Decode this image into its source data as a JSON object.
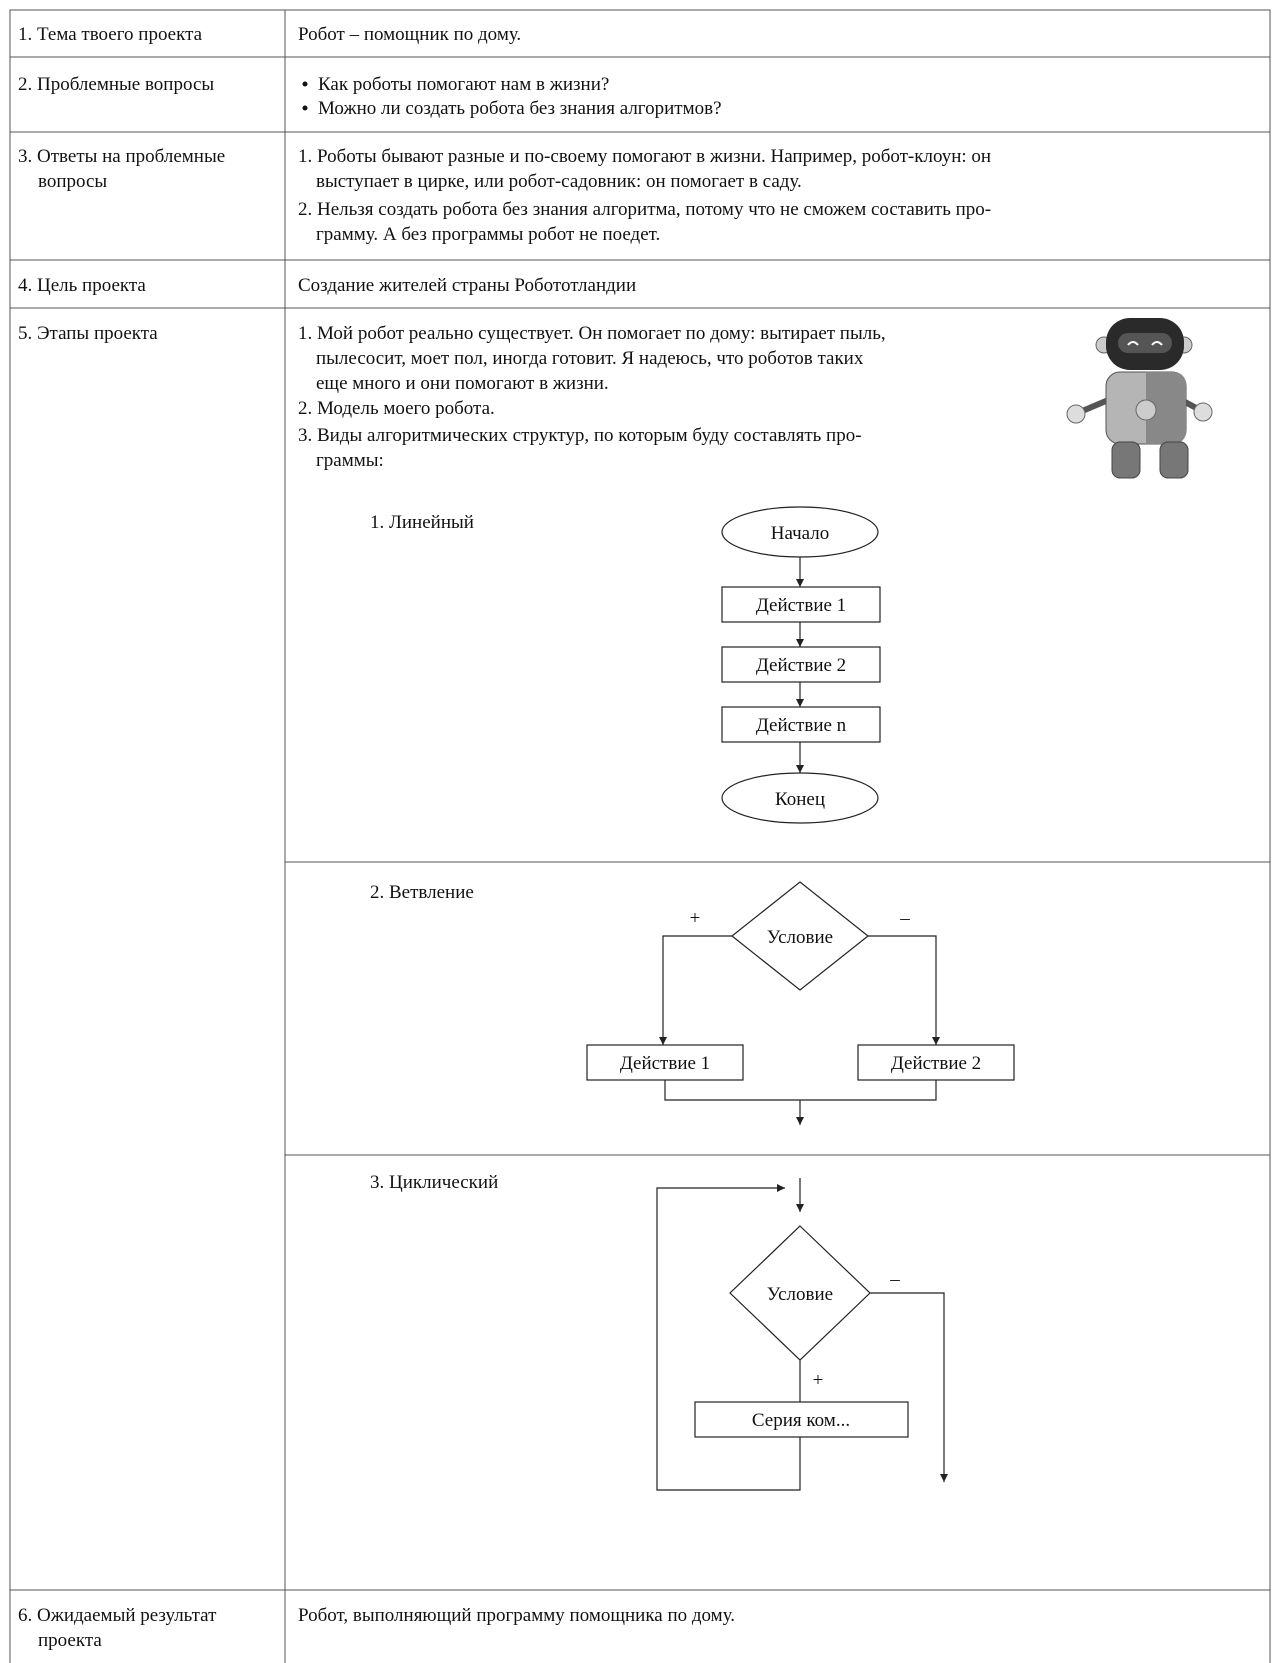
{
  "table": {
    "rows": [
      {
        "label": [
          "1. Тема твоего проекта"
        ],
        "content": [
          "Робот – помощник по дому."
        ]
      },
      {
        "label": [
          "2. Проблемные вопросы"
        ],
        "content": [
          "Как роботы помогают нам в жизни?",
          "Можно ли создать робота без знания алгоритмов?"
        ]
      },
      {
        "label": [
          "3. Ответы на проблемные",
          "вопросы"
        ],
        "content": [
          "1. Роботы бывают разные и по-своему помогают в жизни. Например, робот-клоун: он",
          "выступает в цирке, или робот-садовник: он помогает в саду.",
          "2. Нельзя создать робота без знания алгоритма, потому что не сможем составить про-",
          "грамму. А без программы робот не поедет."
        ]
      },
      {
        "label": [
          "4. Цель проекта"
        ],
        "content": [
          "Создание жителей страны Робототландии"
        ]
      },
      {
        "label": [
          "5. Этапы проекта"
        ],
        "content": [
          "1. Мой робот реально существует. Он помогает по дому: вытирает пыль,",
          "пылесосит, моет пол, иногда готовит. Я надеюсь, что роботов таких",
          "еще много и они помогают в жизни.",
          "2. Модель моего робота.",
          "3. Виды алгоритмических структур, по которым буду составлять про-",
          "граммы:"
        ]
      },
      {
        "label": [
          "6. Ожидаемый результат",
          "проекта"
        ],
        "content": [
          "Робот, выполняющий программу помощника по дому."
        ]
      }
    ]
  },
  "flowcharts": [
    {
      "title": "1. Линейный",
      "nodes": [
        "Начало",
        "Действие 1",
        "Действие 2",
        "Действие n",
        "Конец"
      ]
    },
    {
      "title": "2. Ветвление",
      "nodes": [
        "Условие",
        "Действие 1",
        "Действие 2"
      ],
      "branch_labels": [
        "+",
        "–"
      ]
    },
    {
      "title": "3. Циклический",
      "nodes": [
        "Условие",
        "Серия ком..."
      ],
      "branch_labels": [
        "–",
        "+"
      ]
    }
  ]
}
